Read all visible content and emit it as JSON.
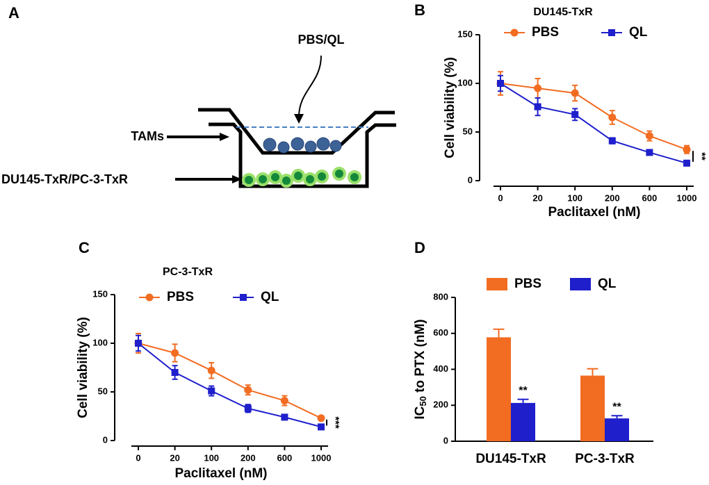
{
  "diagram": {
    "panel": "A",
    "treatment": "PBS/QL",
    "upper": "TAMs",
    "lower": "DU145-TxR/PC-3-TxR"
  },
  "chart_data": [
    {
      "type": "line",
      "panel": "B",
      "title": "DU145-TxR",
      "xlabel": "Paclitaxel (nM)",
      "ylabel": "Cell viability (%)",
      "categories": [
        "0",
        "20",
        "100",
        "200",
        "600",
        "1000"
      ],
      "series": [
        {
          "name": "PBS",
          "color": "#f26c22",
          "marker": "circle",
          "values": [
            100,
            95,
            90,
            65,
            46,
            32
          ],
          "errors": [
            12,
            10,
            8,
            7,
            5,
            4
          ]
        },
        {
          "name": "QL",
          "color": "#1f1fcc",
          "marker": "square",
          "values": [
            100,
            76,
            68,
            41,
            29,
            18
          ],
          "errors": [
            8,
            9,
            6,
            3,
            2,
            2
          ]
        }
      ],
      "ylim": [
        0,
        150
      ],
      "yticks": [
        0,
        50,
        100,
        150
      ],
      "annotation": "**"
    },
    {
      "type": "line",
      "panel": "C",
      "title": "PC-3-TxR",
      "xlabel": "Paclitaxel (nM)",
      "ylabel": "Cell viability (%)",
      "categories": [
        "0",
        "20",
        "100",
        "200",
        "600",
        "1000"
      ],
      "series": [
        {
          "name": "PBS",
          "color": "#f26c22",
          "marker": "circle",
          "values": [
            100,
            90,
            72,
            52,
            41,
            23
          ],
          "errors": [
            10,
            9,
            8,
            5,
            5,
            1
          ]
        },
        {
          "name": "QL",
          "color": "#1f1fcc",
          "marker": "square",
          "values": [
            100,
            70,
            51,
            33,
            24,
            14
          ],
          "errors": [
            8,
            7,
            5,
            4,
            2,
            2
          ]
        }
      ],
      "ylim": [
        0,
        150
      ],
      "yticks": [
        0,
        50,
        100,
        150
      ],
      "annotation": "***"
    },
    {
      "type": "bar",
      "panel": "D",
      "ylabel": {
        "main": "IC",
        "sub": "50",
        "rest": " to PTX (nM)"
      },
      "categories": [
        "DU145-TxR",
        "PC-3-TxR"
      ],
      "series": [
        {
          "name": "PBS",
          "color": "#f26c22",
          "values": [
            578,
            365
          ],
          "errors": [
            45,
            38
          ]
        },
        {
          "name": "QL",
          "color": "#1f1fcc",
          "values": [
            213,
            127
          ],
          "errors": [
            20,
            15
          ]
        }
      ],
      "ylim": [
        0,
        800
      ],
      "yticks": [
        0,
        200,
        400,
        600,
        800
      ],
      "annotations": [
        "**",
        "**"
      ]
    }
  ]
}
